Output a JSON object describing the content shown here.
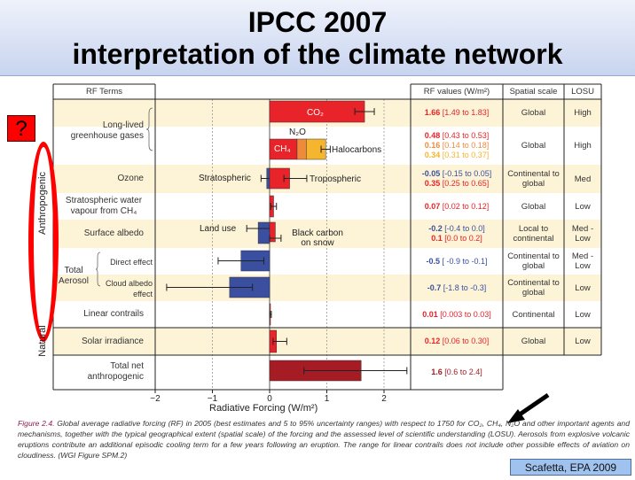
{
  "title": {
    "line1": "IPCC 2007",
    "line2": "interpretation of the climate network"
  },
  "question_mark": "?",
  "side_labels": {
    "anthropogenic": "Anthropogenic",
    "natural": "Natural"
  },
  "headers": {
    "rf_terms": "RF Terms",
    "rf_values": "RF values (W/m²)",
    "spatial": "Spatial scale",
    "losu": "LOSU"
  },
  "terms": {
    "llghg": "Long-lived greenhouse gases",
    "ozone": "Ozone",
    "strat_water": "Stratospheric water vapour from CH₄",
    "albedo": "Surface albedo",
    "aerosol": "Total Aerosol",
    "direct": "Direct effect",
    "cloud": "Cloud albedo effect",
    "contrails": "Linear contrails",
    "solar": "Solar irradiance",
    "total": "Total net anthropogenic"
  },
  "table": [
    {
      "values": [
        {
          "best": "1.66",
          "range": "[1.49 to 1.83]",
          "color": "#e8232a"
        }
      ],
      "spatial": "Global",
      "losu": "High"
    },
    {
      "values": [
        {
          "best": "0.48",
          "range": "[0.43 to 0.53]",
          "color": "#e8232a"
        },
        {
          "best": "0.16",
          "range": "[0.14 to 0.18]",
          "color": "#f08a3a"
        },
        {
          "best": "0.34",
          "range": "[0.31 to 0.37]",
          "color": "#f5b52e"
        }
      ],
      "spatial": "Global",
      "losu": "High"
    },
    {
      "values": [
        {
          "best": "-0.05",
          "range": "[-0.15 to 0.05]",
          "color": "#3a4fa0"
        },
        {
          "best": "0.35",
          "range": "[0.25 to 0.65]",
          "color": "#e8232a"
        }
      ],
      "spatial": "Continental to global",
      "losu": "Med"
    },
    {
      "values": [
        {
          "best": "0.07",
          "range": "[0.02 to 0.12]",
          "color": "#e8232a"
        }
      ],
      "spatial": "Global",
      "losu": "Low"
    },
    {
      "values": [
        {
          "best": "-0.2",
          "range": "[-0.4 to 0.0]",
          "color": "#3a4fa0"
        },
        {
          "best": "0.1",
          "range": "[0.0 to 0.2]",
          "color": "#e8232a"
        }
      ],
      "spatial": "Local to continental",
      "losu": "Med -Low"
    },
    {
      "values": [
        {
          "best": "-0.5",
          "range": "[ -0.9 to -0.1]",
          "color": "#3a4fa0"
        }
      ],
      "spatial": "Continental to global",
      "losu": "Med -Low"
    },
    {
      "values": [
        {
          "best": "-0.7",
          "range": "[-1.8 to -0.3]",
          "color": "#3a4fa0"
        }
      ],
      "spatial": "Continental to global",
      "losu": "Low"
    },
    {
      "values": [
        {
          "best": "0.01",
          "range": "[0.003 to 0.03]",
          "color": "#e8232a"
        }
      ],
      "spatial": "Continental",
      "losu": "Low"
    },
    {
      "values": [
        {
          "best": "0.12",
          "range": "[0.06 to 0.30]",
          "color": "#e8232a"
        }
      ],
      "spatial": "Global",
      "losu": "Low"
    },
    {
      "values": [
        {
          "best": "1.6",
          "range": "[0.6 to 2.4]",
          "color": "#a51c24"
        }
      ],
      "spatial": null,
      "losu": null
    }
  ],
  "chart_data": {
    "type": "bar",
    "orientation": "horizontal",
    "xlabel": "Radiative Forcing (W/m²)",
    "xlim": [
      -2,
      2.45
    ],
    "xticks": [
      "−2",
      "−1",
      "0",
      "1",
      "2"
    ],
    "xtick_values": [
      -2,
      -1,
      0,
      1,
      2
    ],
    "bars": [
      {
        "name": "CO2",
        "row": 0,
        "start": 0,
        "value": 1.66,
        "low": 1.49,
        "high": 1.83,
        "color": "#e8232a"
      },
      {
        "name": "CH4",
        "row": 1,
        "start": 0,
        "value": 0.48,
        "color": "#e8232a"
      },
      {
        "name": "N2O",
        "row": 1,
        "start": 0.48,
        "value": 0.16,
        "color": "#f08a3a"
      },
      {
        "name": "Halocarbons",
        "row": 1,
        "start": 0.64,
        "value": 0.34,
        "low": 0.9,
        "high": 1.06,
        "color": "#f5b52e"
      },
      {
        "name": "Stratospheric ozone",
        "row": 2,
        "start": 0,
        "value": -0.05,
        "low": -0.15,
        "high": 0.05,
        "color": "#3a4fa0"
      },
      {
        "name": "Tropospheric ozone",
        "row": 2,
        "start": 0,
        "value": 0.35,
        "low": 0.25,
        "high": 0.65,
        "color": "#e8232a"
      },
      {
        "name": "Stratospheric water vapour",
        "row": 3,
        "start": 0,
        "value": 0.07,
        "low": 0.02,
        "high": 0.12,
        "color": "#e8232a"
      },
      {
        "name": "Land use",
        "row": 4,
        "start": 0,
        "value": -0.2,
        "low": -0.4,
        "high": 0.0,
        "color": "#3a4fa0"
      },
      {
        "name": "Black carbon on snow",
        "row": 4,
        "start": 0,
        "value": 0.1,
        "low": 0.0,
        "high": 0.2,
        "color": "#e8232a"
      },
      {
        "name": "Aerosol direct effect",
        "row": 5,
        "start": 0,
        "value": -0.5,
        "low": -0.9,
        "high": -0.1,
        "color": "#3a4fa0"
      },
      {
        "name": "Cloud albedo effect",
        "row": 6,
        "start": 0,
        "value": -0.7,
        "low": -1.8,
        "high": -0.3,
        "color": "#3a4fa0"
      },
      {
        "name": "Linear contrails",
        "row": 7,
        "start": 0,
        "value": 0.01,
        "low": 0.003,
        "high": 0.03,
        "color": "#e8232a"
      },
      {
        "name": "Solar irradiance",
        "row": 8,
        "start": 0,
        "value": 0.12,
        "low": 0.06,
        "high": 0.3,
        "color": "#e8232a"
      },
      {
        "name": "Total net anthropogenic",
        "row": 9,
        "start": 0,
        "value": 1.6,
        "low": 0.6,
        "high": 2.4,
        "color": "#a51c24"
      }
    ],
    "annotations": {
      "co2": "CO₂",
      "n2o": "N₂O",
      "ch4": "CH₄",
      "halocarbons": "Halocarbons",
      "stratospheric": "Stratospheric",
      "tropospheric": "Tropospheric",
      "land_use": "Land use",
      "black_carbon": "Black carbon on snow"
    }
  },
  "caption": {
    "label": "Figure 2.4.",
    "text": "Global average radiative forcing (RF) in 2005 (best estimates and 5 to 95% uncertainty ranges) with respect to 1750 for CO₂, CH₄, N₂O and other important agents and mechanisms, together with the typical geographical extent (spatial scale) of the forcing and the assessed level of scientific understanding (LOSU). Aerosols from explosive volcanic eruptions contribute an additional episodic cooling term for a few years following an eruption. The range for linear contrails does not include other possible effects of aviation on cloudiness. (WGI Figure SPM.2)"
  },
  "credit": "Scafetta, EPA 2009"
}
